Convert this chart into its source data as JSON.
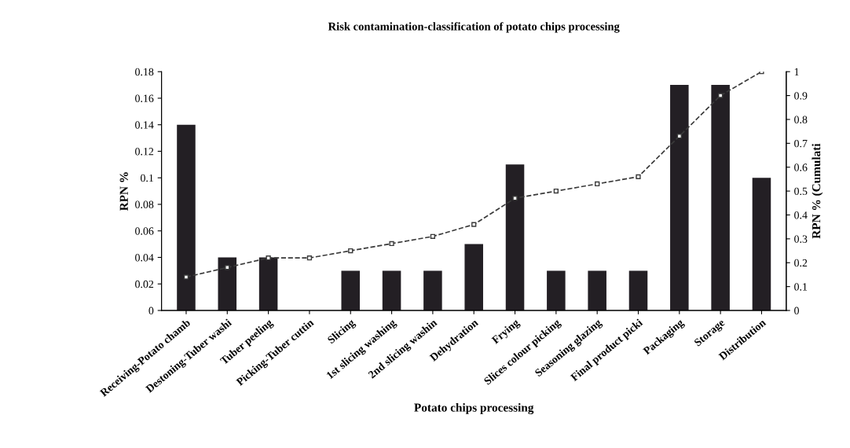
{
  "chart_data": {
    "type": "bar",
    "title": "Risk contamination-classification of potato chips processing",
    "xlabel": "Potato chips processing",
    "ylabel": "RPN %",
    "y2label": "RPN % (Cumulati",
    "categories": [
      "Receiving-Potato chamb",
      "Destoning-Tuber washi",
      "Tuber peeling",
      "Picking-Tuber cuttin",
      "Slicing",
      "1st slicing washing",
      "2nd slicing washin",
      "Dehydration",
      "Frying",
      "Slices colour picking",
      "Seasoning glazing",
      "Final product picki",
      "Packaging",
      "Storage",
      "Distribution"
    ],
    "series": [
      {
        "color": "#231f24",
        "values": [
          0.14,
          0.04,
          0.04,
          0,
          0.03,
          0.03,
          0.03,
          0.05,
          0.11,
          0.03,
          0.03,
          0.03,
          0.17,
          0.17,
          0.1
        ]
      },
      {
        "type": "line",
        "axis": "y2",
        "color": "#3a3a3a",
        "marker": "square",
        "line_style": "dashed",
        "values": [
          0.14,
          0.18,
          0.22,
          0.22,
          0.25,
          0.28,
          0.31,
          0.36,
          0.47,
          0.5,
          0.53,
          0.56,
          0.73,
          0.9,
          1.0
        ]
      }
    ],
    "ylim": [
      0,
      0.18
    ],
    "yticks": [
      0,
      0.02,
      0.04,
      0.06,
      0.08,
      0.1,
      0.12,
      0.14,
      0.16,
      0.18
    ],
    "y2lim": [
      0,
      1
    ],
    "y2ticks": [
      0,
      0.1,
      0.2,
      0.3,
      0.4,
      0.5,
      0.6,
      0.7,
      0.8,
      0.9,
      1
    ],
    "grid": false,
    "legend": false
  }
}
